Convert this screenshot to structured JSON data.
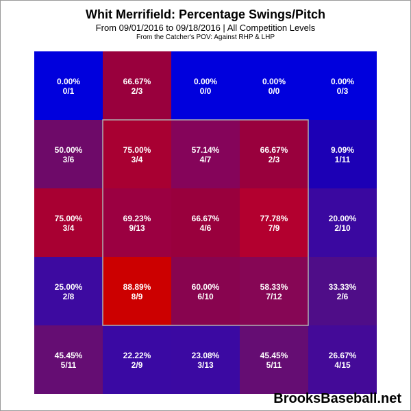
{
  "chart_data": {
    "type": "heatmap",
    "title": "Whit Merrifield: Percentage Swings/Pitch",
    "subtitle": "From 09/01/2016 to 09/18/2016 | All Competition Levels",
    "subtitle2": "From the Catcher's POV:  Against RHP & LHP",
    "rows": 5,
    "cols": 5,
    "strike_zone": {
      "rows": [
        1,
        3
      ],
      "cols": [
        1,
        3
      ]
    },
    "cells": [
      [
        {
          "pct": "0.00%",
          "frac": "0/1",
          "color": "#0000dd"
        },
        {
          "pct": "66.67%",
          "frac": "2/3",
          "color": "#99003d"
        },
        {
          "pct": "0.00%",
          "frac": "0/0",
          "color": "#0000dd"
        },
        {
          "pct": "0.00%",
          "frac": "0/0",
          "color": "#0000dd"
        },
        {
          "pct": "0.00%",
          "frac": "0/3",
          "color": "#0000dd"
        }
      ],
      [
        {
          "pct": "50.00%",
          "frac": "3/6",
          "color": "#6e0a69"
        },
        {
          "pct": "75.00%",
          "frac": "3/4",
          "color": "#a80032"
        },
        {
          "pct": "57.14%",
          "frac": "4/7",
          "color": "#85045a"
        },
        {
          "pct": "66.67%",
          "frac": "2/3",
          "color": "#99003d"
        },
        {
          "pct": "9.09%",
          "frac": "1/11",
          "color": "#1c00b5"
        }
      ],
      [
        {
          "pct": "75.00%",
          "frac": "3/4",
          "color": "#a80032"
        },
        {
          "pct": "69.23%",
          "frac": "9/13",
          "color": "#9b0041"
        },
        {
          "pct": "66.67%",
          "frac": "4/6",
          "color": "#99003d"
        },
        {
          "pct": "77.78%",
          "frac": "7/9",
          "color": "#b3002f"
        },
        {
          "pct": "20.00%",
          "frac": "2/10",
          "color": "#3a08a0"
        }
      ],
      [
        {
          "pct": "25.00%",
          "frac": "2/8",
          "color": "#3d0aa0"
        },
        {
          "pct": "88.89%",
          "frac": "8/9",
          "color": "#cc0000"
        },
        {
          "pct": "60.00%",
          "frac": "6/10",
          "color": "#88044f"
        },
        {
          "pct": "58.33%",
          "frac": "7/12",
          "color": "#860655"
        },
        {
          "pct": "33.33%",
          "frac": "2/6",
          "color": "#4f0d88"
        }
      ],
      [
        {
          "pct": "45.45%",
          "frac": "5/11",
          "color": "#650d73"
        },
        {
          "pct": "22.22%",
          "frac": "2/9",
          "color": "#3a09a3"
        },
        {
          "pct": "23.08%",
          "frac": "3/13",
          "color": "#3b09a2"
        },
        {
          "pct": "45.45%",
          "frac": "5/11",
          "color": "#650d73"
        },
        {
          "pct": "26.67%",
          "frac": "4/15",
          "color": "#440a98"
        }
      ]
    ]
  },
  "footer": {
    "brand": "BrooksBaseball.net"
  }
}
